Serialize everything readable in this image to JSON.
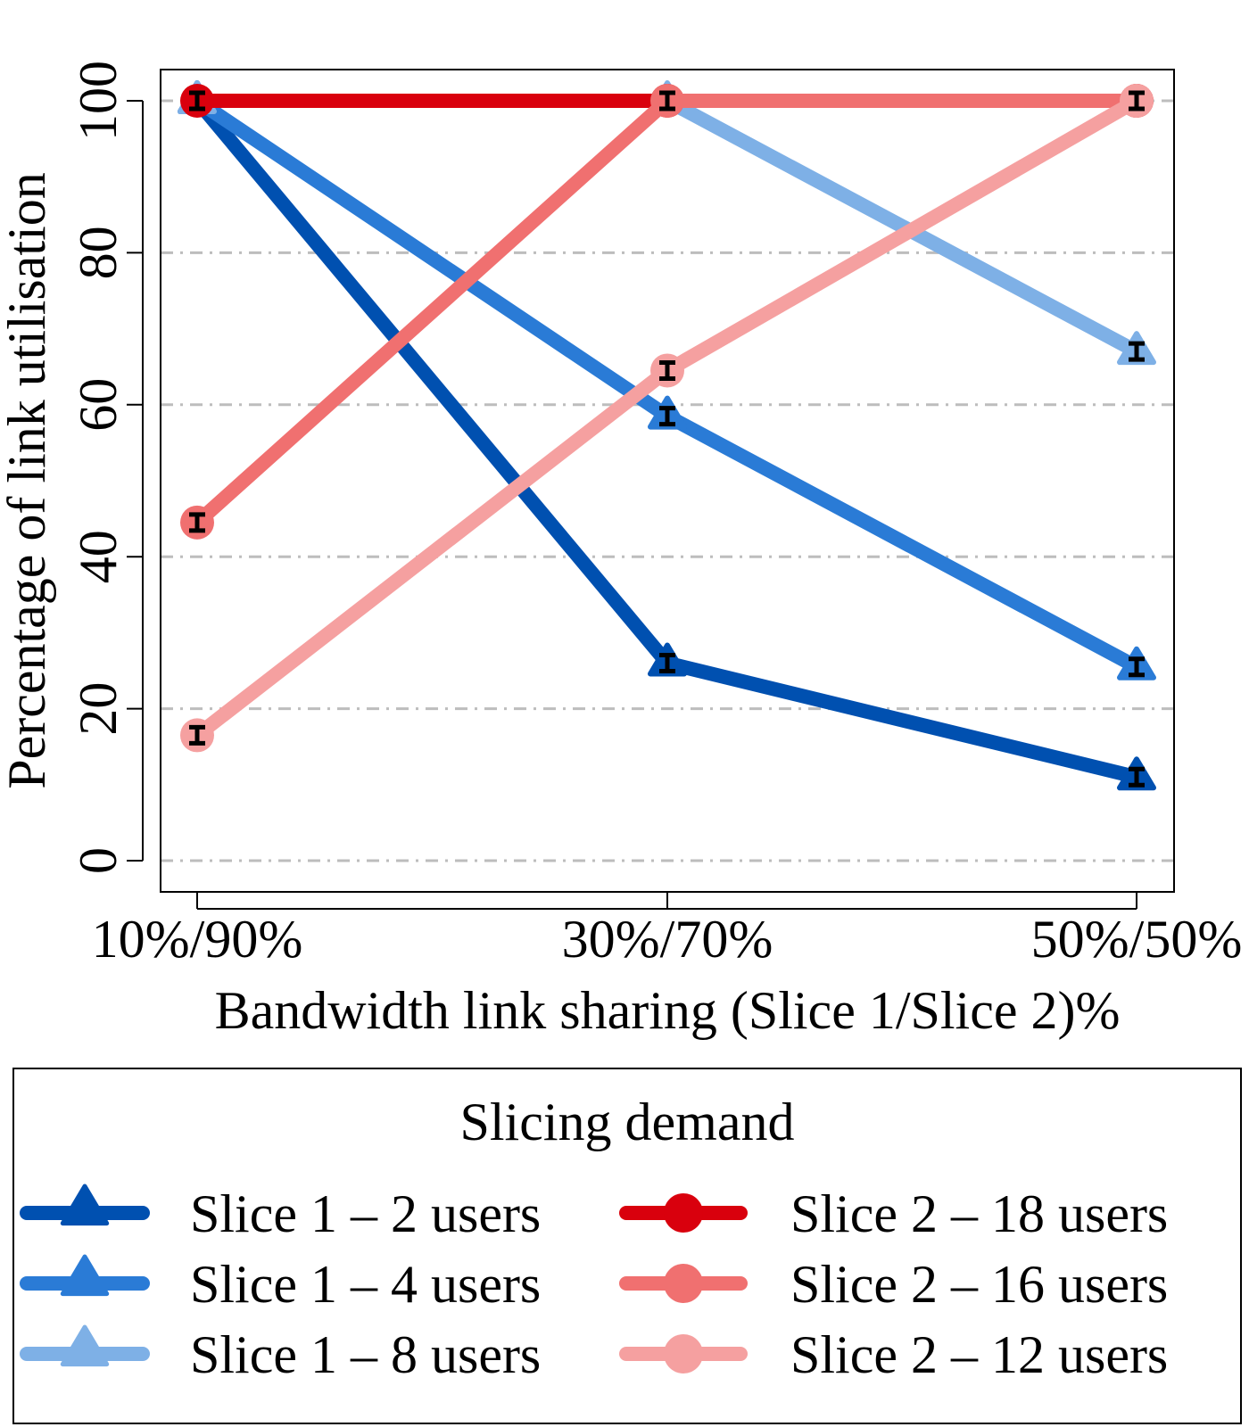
{
  "chart_data": {
    "type": "line",
    "title": "",
    "xlabel": "Bandwidth link sharing (Slice 1/Slice 2)%",
    "ylabel": "Percentage of link utilisation",
    "categories": [
      "10%/90%",
      "30%/70%",
      "50%/50%"
    ],
    "ylim": [
      0,
      100
    ],
    "yticks": [
      0,
      20,
      40,
      60,
      80,
      100
    ],
    "grid": "horizontal dash-dot",
    "legend_title": "Slicing demand",
    "legend_placement": "bottom",
    "series": [
      {
        "name": "Slice 1 – 2 users",
        "color": "#0050b0",
        "marker": "triangle",
        "values": [
          100,
          26,
          11
        ]
      },
      {
        "name": "Slice 1 – 4 users",
        "color": "#2a7bd6",
        "marker": "triangle",
        "values": [
          100,
          58.5,
          25.5
        ]
      },
      {
        "name": "Slice 1 – 8 users",
        "color": "#7eb0e6",
        "marker": "triangle",
        "values": [
          100,
          100,
          67
        ]
      },
      {
        "name": "Slice 2 – 18 users",
        "color": "#d9000d",
        "marker": "circle",
        "values": [
          100,
          100,
          100
        ]
      },
      {
        "name": "Slice 2 – 16 users",
        "color": "#f07070",
        "marker": "circle",
        "values": [
          44.5,
          100,
          100
        ]
      },
      {
        "name": "Slice 2 – 12 users",
        "color": "#f5a0a0",
        "marker": "circle",
        "values": [
          16.5,
          64.5,
          100
        ]
      }
    ]
  }
}
